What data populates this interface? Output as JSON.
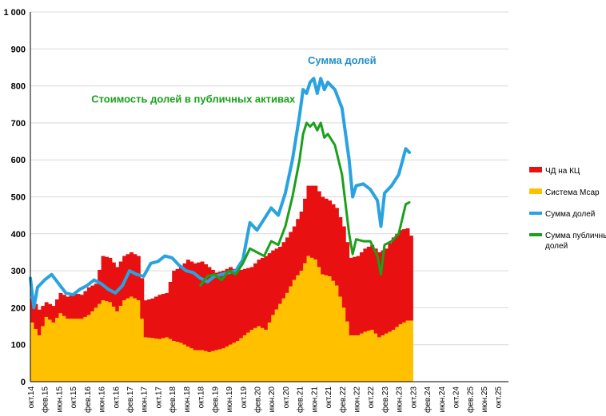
{
  "chart_data": {
    "type": "area",
    "ylim": [
      0,
      1000
    ],
    "yticks": [
      {
        "value": 0,
        "label": "0"
      },
      {
        "value": 100,
        "label": "100"
      },
      {
        "value": 200,
        "label": "200"
      },
      {
        "value": 300,
        "label": "300"
      },
      {
        "value": 400,
        "label": "400"
      },
      {
        "value": 500,
        "label": "500"
      },
      {
        "value": 600,
        "label": "600"
      },
      {
        "value": 700,
        "label": "700"
      },
      {
        "value": 800,
        "label": "800"
      },
      {
        "value": 900,
        "label": "900"
      },
      {
        "value": 1000,
        "label": "1 000"
      }
    ],
    "x_axis": {
      "start_month_index": 0,
      "total_months": 135,
      "tick_labels": [
        {
          "month": 0,
          "label": "окт.14"
        },
        {
          "month": 4,
          "label": "фев.15"
        },
        {
          "month": 8,
          "label": "июн.15"
        },
        {
          "month": 12,
          "label": "окт.15"
        },
        {
          "month": 16,
          "label": "фев.16"
        },
        {
          "month": 20,
          "label": "июн.16"
        },
        {
          "month": 24,
          "label": "окт.16"
        },
        {
          "month": 28,
          "label": "фев.17"
        },
        {
          "month": 32,
          "label": "июн.17"
        },
        {
          "month": 36,
          "label": "окт.17"
        },
        {
          "month": 40,
          "label": "фев.18"
        },
        {
          "month": 44,
          "label": "июн.18"
        },
        {
          "month": 48,
          "label": "окт.18"
        },
        {
          "month": 52,
          "label": "фев.19"
        },
        {
          "month": 56,
          "label": "июн.19"
        },
        {
          "month": 60,
          "label": "окт.19"
        },
        {
          "month": 64,
          "label": "фев.20"
        },
        {
          "month": 68,
          "label": "июн.20"
        },
        {
          "month": 72,
          "label": "окт.20"
        },
        {
          "month": 76,
          "label": "фев.21"
        },
        {
          "month": 80,
          "label": "июн.21"
        },
        {
          "month": 84,
          "label": "окт.21"
        },
        {
          "month": 88,
          "label": "фев.22"
        },
        {
          "month": 92,
          "label": "июн.22"
        },
        {
          "month": 96,
          "label": "окт.22"
        },
        {
          "month": 100,
          "label": "фев.23"
        },
        {
          "month": 104,
          "label": "июн.23"
        },
        {
          "month": 108,
          "label": "окт.23"
        },
        {
          "month": 112,
          "label": "фев.24"
        },
        {
          "month": 116,
          "label": "июн.24"
        },
        {
          "month": 120,
          "label": "окт.24"
        },
        {
          "month": 124,
          "label": "фев.25"
        },
        {
          "month": 128,
          "label": "июн.25"
        },
        {
          "month": 132,
          "label": "окт.25"
        }
      ]
    },
    "series": [
      {
        "name": "ЧД на КЦ",
        "kind": "stacked-bar-top",
        "color": "#e81010",
        "points": [
          [
            0,
            225
          ],
          [
            2,
            195
          ],
          [
            4,
            215
          ],
          [
            6,
            205
          ],
          [
            8,
            240
          ],
          [
            10,
            230
          ],
          [
            12,
            240
          ],
          [
            14,
            235
          ],
          [
            16,
            255
          ],
          [
            18,
            265
          ],
          [
            20,
            340
          ],
          [
            22,
            335
          ],
          [
            24,
            310
          ],
          [
            26,
            340
          ],
          [
            28,
            350
          ],
          [
            30,
            340
          ],
          [
            32,
            220
          ],
          [
            34,
            225
          ],
          [
            36,
            235
          ],
          [
            38,
            240
          ],
          [
            40,
            300
          ],
          [
            42,
            310
          ],
          [
            44,
            330
          ],
          [
            46,
            320
          ],
          [
            48,
            325
          ],
          [
            50,
            310
          ],
          [
            52,
            295
          ],
          [
            54,
            300
          ],
          [
            56,
            310
          ],
          [
            58,
            300
          ],
          [
            60,
            305
          ],
          [
            62,
            310
          ],
          [
            64,
            330
          ],
          [
            66,
            340
          ],
          [
            68,
            355
          ],
          [
            70,
            365
          ],
          [
            72,
            390
          ],
          [
            74,
            420
          ],
          [
            76,
            460
          ],
          [
            78,
            530
          ],
          [
            80,
            530
          ],
          [
            82,
            500
          ],
          [
            84,
            490
          ],
          [
            86,
            470
          ],
          [
            88,
            420
          ],
          [
            90,
            335
          ],
          [
            92,
            340
          ],
          [
            94,
            360
          ],
          [
            96,
            370
          ],
          [
            98,
            350
          ],
          [
            100,
            360
          ],
          [
            102,
            390
          ],
          [
            104,
            410
          ],
          [
            106,
            415
          ],
          [
            107,
            395
          ]
        ]
      },
      {
        "name": "Система Мсар",
        "kind": "stacked-bar-base",
        "color": "#ffc000",
        "points": [
          [
            0,
            160
          ],
          [
            2,
            125
          ],
          [
            4,
            175
          ],
          [
            6,
            160
          ],
          [
            8,
            185
          ],
          [
            10,
            170
          ],
          [
            12,
            170
          ],
          [
            14,
            170
          ],
          [
            16,
            180
          ],
          [
            18,
            200
          ],
          [
            20,
            220
          ],
          [
            22,
            215
          ],
          [
            24,
            190
          ],
          [
            26,
            220
          ],
          [
            28,
            230
          ],
          [
            30,
            220
          ],
          [
            32,
            120
          ],
          [
            34,
            118
          ],
          [
            36,
            115
          ],
          [
            38,
            120
          ],
          [
            40,
            110
          ],
          [
            42,
            105
          ],
          [
            44,
            95
          ],
          [
            46,
            85
          ],
          [
            48,
            85
          ],
          [
            50,
            80
          ],
          [
            52,
            85
          ],
          [
            54,
            90
          ],
          [
            56,
            100
          ],
          [
            58,
            110
          ],
          [
            60,
            125
          ],
          [
            62,
            140
          ],
          [
            64,
            150
          ],
          [
            66,
            140
          ],
          [
            68,
            180
          ],
          [
            70,
            210
          ],
          [
            72,
            240
          ],
          [
            74,
            275
          ],
          [
            76,
            300
          ],
          [
            78,
            340
          ],
          [
            80,
            330
          ],
          [
            82,
            290
          ],
          [
            84,
            285
          ],
          [
            86,
            260
          ],
          [
            88,
            200
          ],
          [
            90,
            125
          ],
          [
            92,
            125
          ],
          [
            94,
            135
          ],
          [
            96,
            140
          ],
          [
            98,
            120
          ],
          [
            100,
            130
          ],
          [
            102,
            140
          ],
          [
            104,
            155
          ],
          [
            106,
            165
          ],
          [
            107,
            165
          ]
        ]
      },
      {
        "name": "Сумма долей",
        "kind": "line",
        "color": "#29a3e0",
        "points": [
          [
            0,
            280
          ],
          [
            1,
            200
          ],
          [
            2,
            255
          ],
          [
            4,
            275
          ],
          [
            6,
            290
          ],
          [
            8,
            265
          ],
          [
            10,
            240
          ],
          [
            12,
            235
          ],
          [
            14,
            250
          ],
          [
            16,
            260
          ],
          [
            18,
            275
          ],
          [
            20,
            265
          ],
          [
            22,
            250
          ],
          [
            24,
            240
          ],
          [
            26,
            260
          ],
          [
            28,
            300
          ],
          [
            30,
            290
          ],
          [
            32,
            285
          ],
          [
            34,
            320
          ],
          [
            36,
            325
          ],
          [
            38,
            340
          ],
          [
            40,
            335
          ],
          [
            42,
            315
          ],
          [
            44,
            300
          ],
          [
            46,
            295
          ],
          [
            48,
            280
          ],
          [
            50,
            270
          ],
          [
            52,
            285
          ],
          [
            54,
            290
          ],
          [
            56,
            295
          ],
          [
            58,
            300
          ],
          [
            60,
            330
          ],
          [
            62,
            430
          ],
          [
            64,
            410
          ],
          [
            66,
            440
          ],
          [
            68,
            470
          ],
          [
            70,
            450
          ],
          [
            72,
            510
          ],
          [
            74,
            600
          ],
          [
            76,
            720
          ],
          [
            77,
            790
          ],
          [
            78,
            780
          ],
          [
            79,
            810
          ],
          [
            80,
            820
          ],
          [
            81,
            780
          ],
          [
            82,
            820
          ],
          [
            83,
            790
          ],
          [
            84,
            810
          ],
          [
            86,
            790
          ],
          [
            88,
            740
          ],
          [
            90,
            600
          ],
          [
            91,
            500
          ],
          [
            92,
            530
          ],
          [
            94,
            535
          ],
          [
            96,
            520
          ],
          [
            98,
            490
          ],
          [
            99,
            420
          ],
          [
            100,
            510
          ],
          [
            102,
            530
          ],
          [
            104,
            560
          ],
          [
            106,
            630
          ],
          [
            107,
            620
          ]
        ]
      },
      {
        "name": "Сумма публичных долей",
        "kind": "line",
        "color": "#1aa01a",
        "points": [
          [
            48,
            260
          ],
          [
            50,
            285
          ],
          [
            52,
            290
          ],
          [
            54,
            275
          ],
          [
            56,
            300
          ],
          [
            58,
            290
          ],
          [
            60,
            320
          ],
          [
            62,
            360
          ],
          [
            64,
            350
          ],
          [
            66,
            340
          ],
          [
            68,
            380
          ],
          [
            70,
            370
          ],
          [
            72,
            420
          ],
          [
            74,
            500
          ],
          [
            76,
            600
          ],
          [
            77,
            670
          ],
          [
            78,
            700
          ],
          [
            79,
            690
          ],
          [
            80,
            700
          ],
          [
            81,
            680
          ],
          [
            82,
            700
          ],
          [
            83,
            660
          ],
          [
            84,
            670
          ],
          [
            86,
            640
          ],
          [
            88,
            560
          ],
          [
            90,
            400
          ],
          [
            91,
            345
          ],
          [
            92,
            385
          ],
          [
            94,
            380
          ],
          [
            96,
            380
          ],
          [
            98,
            340
          ],
          [
            99,
            290
          ],
          [
            100,
            370
          ],
          [
            102,
            380
          ],
          [
            104,
            400
          ],
          [
            106,
            480
          ],
          [
            107,
            485
          ]
        ]
      }
    ],
    "legend": {
      "placement": "right",
      "entries": [
        {
          "label": "ЧД на КЦ",
          "color": "#e81010",
          "marker": "square"
        },
        {
          "label": "Система Мсар",
          "color": "#ffc000",
          "marker": "square"
        },
        {
          "label": "Сумма долей",
          "color": "#29a3e0",
          "marker": "line"
        },
        {
          "label": "Сумма публичных долей",
          "label_lines": [
            "Сумма публичных",
            "долей"
          ],
          "color": "#1aa01a",
          "marker": "line"
        }
      ]
    },
    "annotations": [
      {
        "text": "Стоимость долей в публичных активах",
        "color": "#1aa01a",
        "anchor_month": 46,
        "anchor_value": 755
      },
      {
        "text": "Сумма долей",
        "color": "#1f8fc8",
        "anchor_month": 88,
        "anchor_value": 860
      }
    ]
  }
}
